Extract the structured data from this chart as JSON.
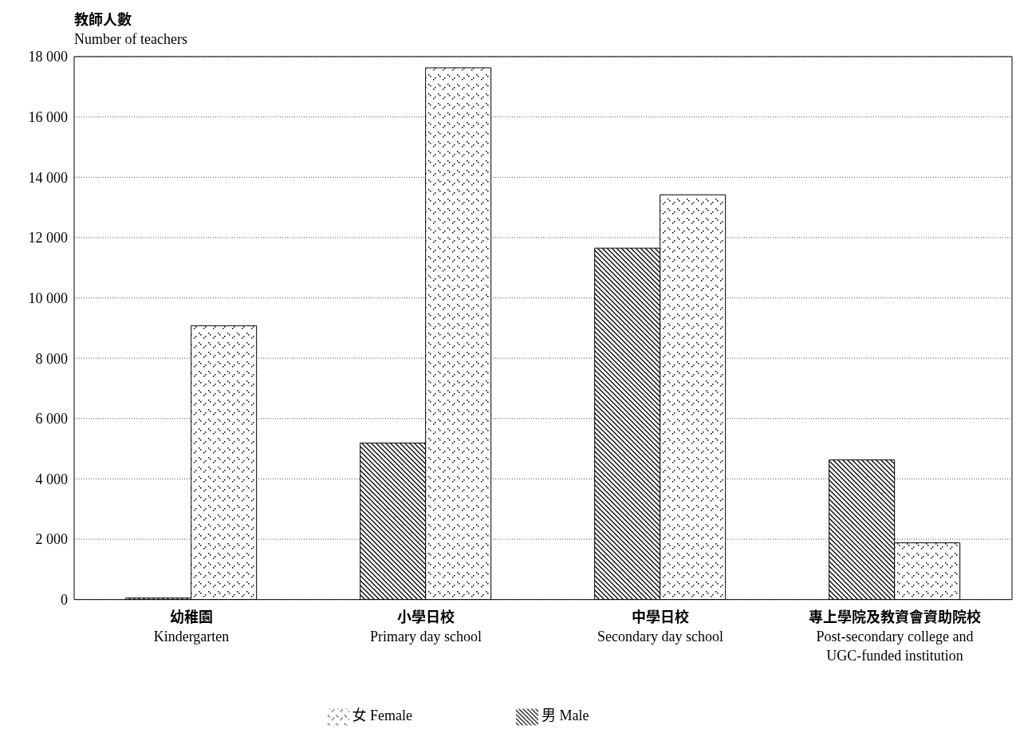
{
  "chart_data": {
    "type": "bar",
    "ylabel": "教師人數\nNumber of teachers",
    "categories": [
      "幼稚園\nKindergarten",
      "小學日校\nPrimary day school",
      "中學日校\nSecondary day school",
      "專上學院及教資會資助院校\nPost-secondary college and UGC-funded institution"
    ],
    "series": [
      {
        "name": "男 Male",
        "color": "#000000",
        "values": [
          50,
          5190,
          11650,
          4630
        ]
      },
      {
        "name": "女 Female",
        "color": "#000000",
        "values": [
          9080,
          17630,
          13420,
          1880
        ]
      }
    ],
    "ylim": [
      0,
      18000
    ],
    "yticks": [
      {
        "value": 0,
        "label": "0"
      },
      {
        "value": 2000,
        "label": "2 000"
      },
      {
        "value": 4000,
        "label": "4 000"
      },
      {
        "value": 6000,
        "label": "6 000"
      },
      {
        "value": 8000,
        "label": "8 000"
      },
      {
        "value": 10000,
        "label": "10 000"
      },
      {
        "value": 12000,
        "label": "12 000"
      },
      {
        "value": 14000,
        "label": "14 000"
      },
      {
        "value": 16000,
        "label": "16 000"
      },
      {
        "value": 18000,
        "label": "18 000"
      }
    ],
    "grid": "y",
    "legend": "bottom"
  }
}
